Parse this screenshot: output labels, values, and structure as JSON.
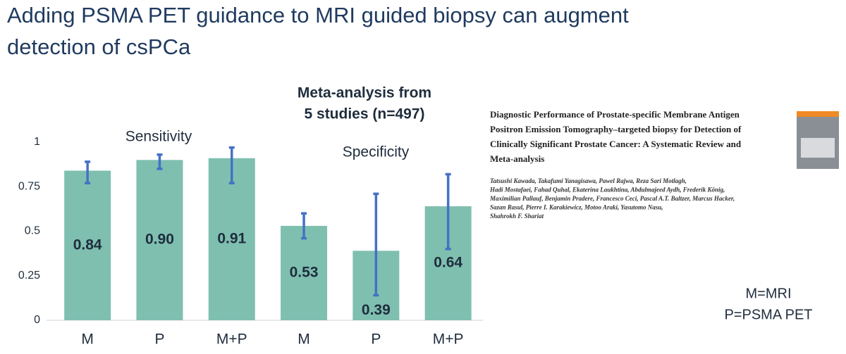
{
  "slide_title": [
    "Adding PSMA PET guidance to MRI guided biopsy can augment",
    "detection of csPCa"
  ],
  "chart_data": {
    "type": "bar",
    "title": [
      "Meta-analysis from",
      "5 studies (n=497)"
    ],
    "annotations": [
      "Sensitivity",
      "Specificity"
    ],
    "categories": [
      "M",
      "P",
      "M+P",
      "M",
      "P",
      "M+P"
    ],
    "values": [
      0.84,
      0.9,
      0.91,
      0.53,
      0.39,
      0.64
    ],
    "value_labels": [
      "0.84",
      "0.90",
      "0.91",
      "0.53",
      "0.39",
      "0.64"
    ],
    "lower": [
      0.77,
      0.85,
      0.77,
      0.46,
      0.14,
      0.4
    ],
    "upper": [
      0.89,
      0.93,
      0.97,
      0.6,
      0.71,
      0.82
    ],
    "color": "#7fbfb0",
    "error_color": "#4472c4",
    "ylim": [
      0,
      1
    ],
    "yticks": [
      0,
      0.25,
      0.5,
      0.75,
      1
    ]
  },
  "paper": {
    "title_lines": [
      "Diagnostic Performance of Prostate-specific Membrane Antigen",
      "Positron Emission Tomography–targeted biopsy for Detection of",
      "Clinically Significant Prostate Cancer: A Systematic Review and",
      "Meta-analysis"
    ],
    "author_lines": [
      "Tatsushi Kawada, Takafumi Yanagisawa, Pawel Rajwa, Reza Sari Motlagh,",
      "Hadi Mostafaei, Fahad Quhal, Ekaterina Laukhtina, Abdulmajeed Aydh, Frederik König,",
      "Maximilian Pallauf, Benjamin Pradere, Francesco Ceci, Pascal A.T. Baltzer, Marcus Hacker,",
      "Sazan Rasul, Pierre I. Karakiewicz, Motoo Araki, Yasutomo Nasu,",
      "Shahrokh F. Shariat"
    ]
  },
  "notes": [
    "M=MRI",
    "P=PSMA PET"
  ]
}
